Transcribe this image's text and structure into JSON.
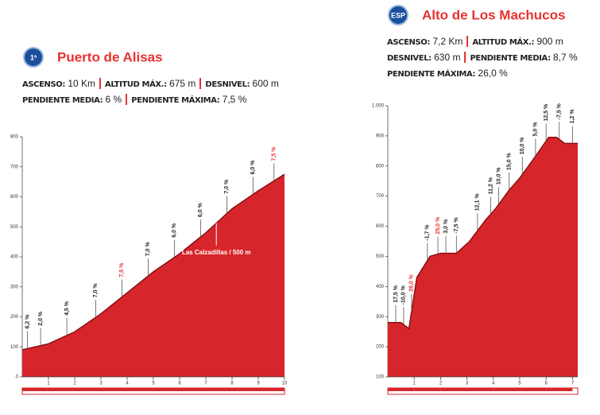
{
  "chart_data": [
    {
      "type": "area",
      "badge": "1ª",
      "title": "Puerto de Alisas",
      "stats": [
        [
          {
            "label": "ASCENSO:",
            "value": "10 Km"
          },
          {
            "label": "ALTITUD MÁX.:",
            "value": "675 m"
          },
          {
            "label": "DESNIVEL:",
            "value": "600 m"
          }
        ],
        [
          {
            "label": "PENDIENTE MEDIA:",
            "value": "6 %"
          },
          {
            "label": "PENDIENTE MÁXIMA:",
            "value": "7,5 %"
          }
        ]
      ],
      "x": [
        0,
        1,
        2,
        3,
        4,
        5,
        6,
        7,
        8,
        9,
        10
      ],
      "values": [
        90,
        110,
        150,
        210,
        280,
        350,
        410,
        480,
        560,
        620,
        675
      ],
      "color": "#d7262b",
      "xlim": [
        0,
        10
      ],
      "xticks": [
        1,
        2,
        3,
        4,
        5,
        6,
        7,
        8,
        9,
        10
      ],
      "ylim": [
        0,
        800
      ],
      "yticks": [
        0,
        100,
        200,
        300,
        400,
        500,
        600,
        700,
        800
      ],
      "gradients": [
        {
          "x": 0.2,
          "label": "6,2 %",
          "color": "#222222"
        },
        {
          "x": 0.7,
          "label": "2,0 %",
          "color": "#222222"
        },
        {
          "x": 1.7,
          "label": "4,5 %",
          "color": "#222222"
        },
        {
          "x": 2.8,
          "label": "7,0 %",
          "color": "#222222"
        },
        {
          "x": 3.8,
          "label": "7,5 %",
          "color": "#e8312f"
        },
        {
          "x": 4.8,
          "label": "7,0 %",
          "color": "#222222"
        },
        {
          "x": 5.8,
          "label": "6,0 %",
          "color": "#222222"
        },
        {
          "x": 6.8,
          "label": "6,0 %",
          "color": "#222222"
        },
        {
          "x": 7.8,
          "label": "7,0 %",
          "color": "#222222"
        },
        {
          "x": 8.8,
          "label": "6,0 %",
          "color": "#222222"
        },
        {
          "x": 9.6,
          "label": "7,5 %",
          "color": "#e8312f"
        }
      ],
      "annotations": [
        {
          "x": 7.4,
          "text": "Las Calzadillas / 500 m"
        }
      ]
    },
    {
      "type": "area",
      "badge": "ESP",
      "title": "Alto de Los Machucos",
      "stats": [
        [
          {
            "label": "ASCENSO:",
            "value": "7,2 Km"
          },
          {
            "label": "ALTITUD MÁX.:",
            "value": "900 m"
          }
        ],
        [
          {
            "label": "DESNIVEL:",
            "value": "630 m"
          },
          {
            "label": "PENDIENTE MEDIA:",
            "value": "8,7 %"
          }
        ],
        [
          {
            "label": "PENDIENTE MÁXIMA:",
            "value": "26,0 %"
          }
        ]
      ],
      "x": [
        0,
        0.5,
        0.8,
        1.1,
        1.6,
        2.0,
        2.6,
        3.1,
        3.7,
        4.1,
        4.6,
        5.0,
        5.5,
        6.1,
        6.4,
        6.7,
        7.2
      ],
      "values": [
        280,
        280,
        260,
        430,
        500,
        510,
        510,
        550,
        620,
        660,
        720,
        760,
        820,
        895,
        895,
        875,
        875
      ],
      "color": "#d7262b",
      "xlim": [
        0,
        7.2
      ],
      "xticks": [
        1,
        2,
        3,
        4,
        5,
        6,
        7
      ],
      "ylim": [
        100,
        1000
      ],
      "yticks": [
        100,
        200,
        300,
        400,
        500,
        600,
        700,
        800,
        900,
        {
          "value": 1000,
          "label": "1.000"
        }
      ],
      "gradients": [
        {
          "x": 0.3,
          "label": "17,5 %",
          "color": "#222222"
        },
        {
          "x": 0.6,
          "label": "-10,0 %",
          "color": "#222222"
        },
        {
          "x": 0.9,
          "label": "26,0 %",
          "color": "#e8312f"
        },
        {
          "x": 1.5,
          "label": "-1,7 %",
          "color": "#222222"
        },
        {
          "x": 1.9,
          "label": "25,0 %",
          "color": "#e8312f"
        },
        {
          "x": 2.2,
          "label": "3,0 %",
          "color": "#222222"
        },
        {
          "x": 2.6,
          "label": "-7,5 %",
          "color": "#222222"
        },
        {
          "x": 3.4,
          "label": "12,1 %",
          "color": "#222222"
        },
        {
          "x": 3.9,
          "label": "11,2 %",
          "color": "#222222"
        },
        {
          "x": 4.2,
          "label": "10,0 %",
          "color": "#222222"
        },
        {
          "x": 4.6,
          "label": "15,0 %",
          "color": "#222222"
        },
        {
          "x": 5.1,
          "label": "10,0 %",
          "color": "#222222"
        },
        {
          "x": 5.6,
          "label": "5,0 %",
          "color": "#222222"
        },
        {
          "x": 6.0,
          "label": "12,5 %",
          "color": "#222222"
        },
        {
          "x": 6.5,
          "label": "-7,5 %",
          "color": "#222222"
        },
        {
          "x": 7.0,
          "label": "1,2 %",
          "color": "#222222"
        }
      ]
    }
  ]
}
